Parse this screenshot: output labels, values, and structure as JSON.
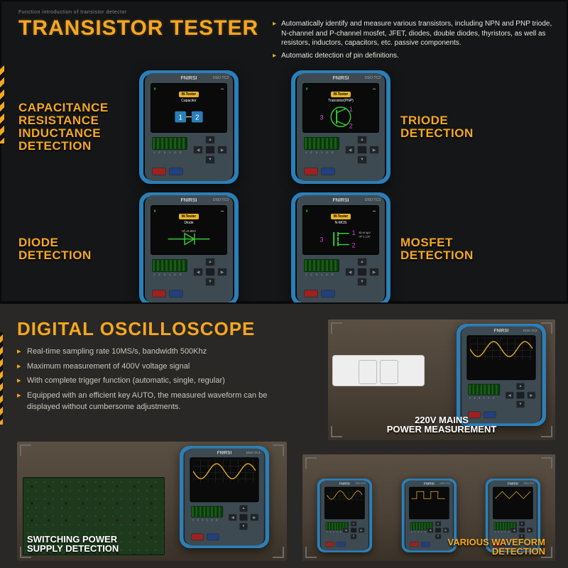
{
  "colors": {
    "accent": "#f5a720",
    "accent_glow": "#ffb838",
    "bullet": "#f5a720",
    "section1_bg": "#141618",
    "section2_bg": "#2a2826",
    "device_bumper": "#2b7fb8",
    "device_case": "#3d4a52",
    "text_light": "#e8e4dc",
    "text_muted": "#c9c5bf",
    "bracket": "#6a6a6a"
  },
  "top": {
    "breadcrumb": "Function introduction of transistor detector",
    "title": "TRANSISTOR TESTER",
    "bullets": [
      "Automatically identify and measure various transistors, including NPN and PNP triode, N-channel and P-channel mosfet, JFET, diodes, double diodes, thyristors, as well as resistors, inductors, capacitors, etc. passive components.",
      "Automatic detection of pin definitions."
    ],
    "cells": [
      {
        "label_lines": [
          "CAPACITANCE",
          "RESISTANCE",
          "INDUCTANCE",
          "DETECTION"
        ],
        "side": "left",
        "screen_sub": "Capacitor",
        "gfx": "cap"
      },
      {
        "label_lines": [
          "TRIODE",
          "DETECTION"
        ],
        "side": "right",
        "screen_sub": "Transistor(PNP)",
        "gfx": "pnp"
      },
      {
        "label_lines": [
          "DIODE",
          "DETECTION"
        ],
        "side": "left",
        "screen_sub": "Diode",
        "gfx": "diode"
      },
      {
        "label_lines": [
          "MOSFET",
          "DETECTION"
        ],
        "side": "right",
        "screen_sub": "N-MOS",
        "gfx": "mosfet"
      }
    ],
    "device": {
      "brand": "FNIRSI",
      "model": "DSO-TC3",
      "screen_title": "M-Tester"
    }
  },
  "bottom": {
    "title": "DIGITAL OSCILLOSCOPE",
    "bullets": [
      "Real-time sampling rate 10MS/s, bandwidth 500Khz",
      "Maximum measurement of 400V voltage signal",
      "With complete trigger function (automatic, single, regular)",
      "Equipped with an efficient key AUTO, the measured waveform can be displayed without cumbersome adjustments."
    ],
    "scenes": {
      "mains": {
        "label_lines": [
          "220V MAINS",
          "POWER MEASUREMENT"
        ]
      },
      "switch": {
        "label_lines": [
          "SWITCHING POWER",
          "SUPPLY DETECTION"
        ]
      },
      "wave": {
        "label_lines": [
          "VARIOUS WAVEFORM",
          "DETECTION"
        ]
      }
    }
  }
}
